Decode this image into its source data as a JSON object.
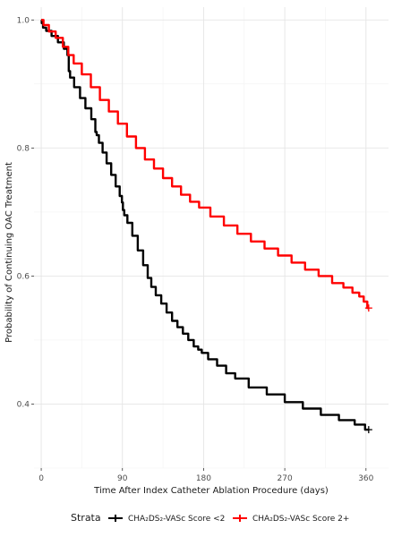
{
  "chart_data": {
    "type": "line",
    "subtype": "kaplan-meier step curve",
    "xlabel": "Time After Index Catheter Ablation Procedure (days)",
    "ylabel": "Probability of Continuing OAC Treatment",
    "xlim": [
      -8,
      385
    ],
    "ylim": [
      0.3,
      1.02
    ],
    "x_ticks": [
      0,
      90,
      180,
      270,
      360
    ],
    "y_ticks": [
      0.4,
      0.6,
      0.8,
      1.0
    ],
    "x_tick_labels": [
      "0",
      "90",
      "180",
      "270",
      "360"
    ],
    "y_tick_labels": [
      "0.4",
      "0.6",
      "0.8",
      "1.0"
    ],
    "grid": true,
    "legend_title": "Strata",
    "legend_position": "bottom",
    "series": [
      {
        "name": "CHA₂DS₂-VASc Score <2",
        "color": "#000000",
        "x": [
          0,
          1,
          3,
          8,
          15,
          22,
          28,
          30,
          31,
          33,
          40,
          46,
          52,
          59,
          61,
          62,
          66,
          70,
          75,
          80,
          85,
          89,
          90,
          91,
          93,
          98,
          104,
          110,
          116,
          120,
          124,
          130,
          136,
          142,
          148,
          154,
          160,
          166,
          172,
          176,
          180,
          190,
          200,
          210,
          220,
          240,
          260,
          280,
          300,
          320,
          340,
          355,
          363
        ],
        "y": [
          1.0,
          0.995,
          0.988,
          0.983,
          0.975,
          0.965,
          0.955,
          0.945,
          0.92,
          0.91,
          0.895,
          0.878,
          0.862,
          0.845,
          0.825,
          0.82,
          0.808,
          0.793,
          0.776,
          0.758,
          0.74,
          0.725,
          0.715,
          0.703,
          0.695,
          0.683,
          0.663,
          0.64,
          0.617,
          0.597,
          0.583,
          0.57,
          0.557,
          0.543,
          0.53,
          0.52,
          0.51,
          0.5,
          0.49,
          0.485,
          0.48,
          0.47,
          0.46,
          0.448,
          0.44,
          0.426,
          0.415,
          0.403,
          0.393,
          0.383,
          0.375,
          0.368,
          0.36
        ]
      },
      {
        "name": "CHA₂DS₂-VASc Score 2+",
        "color": "#ff0000",
        "x": [
          0,
          5,
          12,
          20,
          28,
          32,
          40,
          50,
          60,
          70,
          80,
          90,
          100,
          110,
          120,
          130,
          140,
          150,
          160,
          170,
          180,
          195,
          210,
          225,
          240,
          255,
          270,
          285,
          300,
          315,
          330,
          340,
          350,
          355,
          360,
          363
        ],
        "y": [
          1.0,
          0.992,
          0.982,
          0.972,
          0.958,
          0.945,
          0.932,
          0.915,
          0.895,
          0.875,
          0.857,
          0.838,
          0.818,
          0.8,
          0.782,
          0.768,
          0.753,
          0.74,
          0.727,
          0.716,
          0.707,
          0.693,
          0.679,
          0.666,
          0.654,
          0.643,
          0.632,
          0.621,
          0.61,
          0.6,
          0.589,
          0.582,
          0.574,
          0.568,
          0.56,
          0.55
        ]
      }
    ]
  }
}
